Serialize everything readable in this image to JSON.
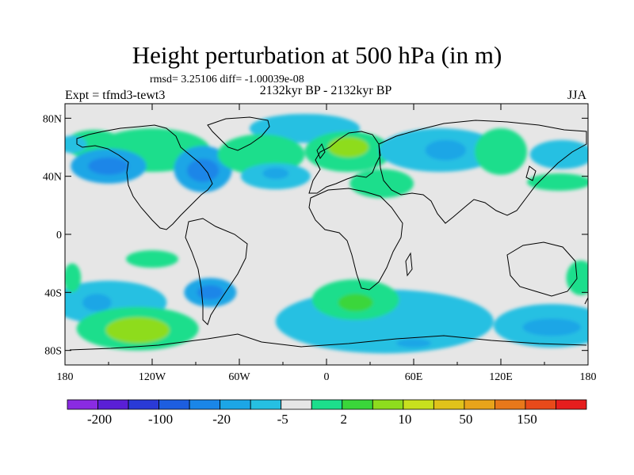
{
  "chart_data": {
    "type": "heatmap",
    "title": "Height perturbation at 500 hPa (in m)",
    "stats_text": "rmsd= 3.25106 diff= -1.00039e-08",
    "left_label": "Expt = tfmd3-tewt3",
    "center_label": "2132kyr BP - 2132kyr BP",
    "right_label": "JJA",
    "x_ticks": [
      "180",
      "120W",
      "60W",
      "0",
      "60E",
      "120E",
      "180"
    ],
    "y_ticks": [
      "80N",
      "40N",
      "0",
      "40S",
      "80S"
    ],
    "lon_range": [
      -180,
      180
    ],
    "lat_range": [
      -90,
      90
    ],
    "colorbar": {
      "colors": [
        "#8a2be2",
        "#5a1fd6",
        "#2a3ad6",
        "#1d5ee0",
        "#1a86e8",
        "#1ca6e6",
        "#26c0e2",
        "#e6e6e6",
        "#1cde8c",
        "#3ad63a",
        "#8edc1e",
        "#c8e01e",
        "#e0c21a",
        "#e8a41a",
        "#e8781a",
        "#e84a1a",
        "#e61e1e"
      ],
      "labels": [
        "-200",
        "-100",
        "-20",
        "-5",
        "2",
        "10",
        "50",
        "150"
      ]
    },
    "blobs": [
      {
        "lon": -120,
        "lat": 58,
        "rx": 40,
        "ry": 15,
        "level": 8
      },
      {
        "lon": -160,
        "lat": 62,
        "rx": 20,
        "ry": 10,
        "level": 8
      },
      {
        "lon": -150,
        "lat": 47,
        "rx": 26,
        "ry": 12,
        "level": 5
      },
      {
        "lon": -150,
        "lat": 47,
        "rx": 14,
        "ry": 6,
        "level": 4
      },
      {
        "lon": -85,
        "lat": 45,
        "rx": 20,
        "ry": 16,
        "level": 5
      },
      {
        "lon": -85,
        "lat": 44,
        "rx": 11,
        "ry": 8,
        "level": 4
      },
      {
        "lon": -15,
        "lat": 73,
        "rx": 38,
        "ry": 10,
        "level": 6
      },
      {
        "lon": -45,
        "lat": 55,
        "rx": 30,
        "ry": 14,
        "level": 8
      },
      {
        "lon": -35,
        "lat": 40,
        "rx": 24,
        "ry": 9,
        "level": 6
      },
      {
        "lon": -35,
        "lat": 42,
        "rx": 9,
        "ry": 4,
        "level": 5
      },
      {
        "lon": 15,
        "lat": 57,
        "rx": 30,
        "ry": 14,
        "level": 8
      },
      {
        "lon": 15,
        "lat": 60,
        "rx": 14,
        "ry": 7,
        "level": 10
      },
      {
        "lon": 38,
        "lat": 35,
        "rx": 22,
        "ry": 10,
        "level": 8
      },
      {
        "lon": 78,
        "lat": 58,
        "rx": 42,
        "ry": 15,
        "level": 6
      },
      {
        "lon": 82,
        "lat": 58,
        "rx": 14,
        "ry": 7,
        "level": 5
      },
      {
        "lon": 120,
        "lat": 57,
        "rx": 18,
        "ry": 16,
        "level": 8
      },
      {
        "lon": 162,
        "lat": 55,
        "rx": 22,
        "ry": 10,
        "level": 6
      },
      {
        "lon": 160,
        "lat": 36,
        "rx": 22,
        "ry": 6,
        "level": 8
      },
      {
        "lon": -175,
        "lat": 62,
        "rx": 10,
        "ry": 6,
        "level": 6
      },
      {
        "lon": -150,
        "lat": -47,
        "rx": 40,
        "ry": 15,
        "level": 6
      },
      {
        "lon": -158,
        "lat": -47,
        "rx": 10,
        "ry": 6,
        "level": 5
      },
      {
        "lon": -130,
        "lat": -65,
        "rx": 42,
        "ry": 15,
        "level": 8
      },
      {
        "lon": -130,
        "lat": -66,
        "rx": 22,
        "ry": 9,
        "level": 10
      },
      {
        "lon": -80,
        "lat": -40,
        "rx": 18,
        "ry": 10,
        "level": 5
      },
      {
        "lon": -80,
        "lat": -40,
        "rx": 9,
        "ry": 5,
        "level": 4
      },
      {
        "lon": 40,
        "lat": -60,
        "rx": 75,
        "ry": 22,
        "level": 6
      },
      {
        "lon": 20,
        "lat": -45,
        "rx": 30,
        "ry": 14,
        "level": 8
      },
      {
        "lon": 20,
        "lat": -47,
        "rx": 12,
        "ry": 6,
        "level": 9
      },
      {
        "lon": 60,
        "lat": -75,
        "rx": 12,
        "ry": 3,
        "level": 5
      },
      {
        "lon": 155,
        "lat": -63,
        "rx": 40,
        "ry": 15,
        "level": 6
      },
      {
        "lon": 155,
        "lat": -64,
        "rx": 20,
        "ry": 6,
        "level": 5
      },
      {
        "lon": 175,
        "lat": -30,
        "rx": 10,
        "ry": 12,
        "level": 8
      },
      {
        "lon": -175,
        "lat": -30,
        "rx": 6,
        "ry": 10,
        "level": 8
      },
      {
        "lon": -120,
        "lat": -17,
        "rx": 18,
        "ry": 6,
        "level": 8
      }
    ]
  }
}
